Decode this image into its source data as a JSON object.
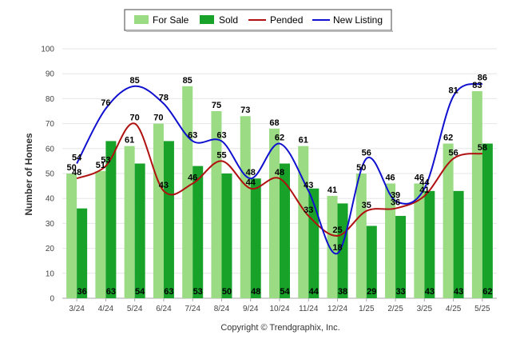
{
  "chart_data": {
    "type": "bar",
    "ylabel": "Number of Homes",
    "ylim": [
      0,
      100
    ],
    "yticks": [
      0,
      10,
      20,
      30,
      40,
      50,
      60,
      70,
      80,
      90,
      100
    ],
    "categories": [
      "3/24",
      "4/24",
      "5/24",
      "6/24",
      "7/24",
      "8/24",
      "9/24",
      "10/24",
      "11/24",
      "12/24",
      "1/25",
      "2/25",
      "3/25",
      "4/25",
      "5/25"
    ],
    "series": [
      {
        "name": "For Sale",
        "kind": "bar",
        "color": "#9ADB84",
        "values": [
          50,
          51,
          61,
          70,
          85,
          75,
          73,
          68,
          61,
          41,
          50,
          46,
          46,
          62,
          83
        ]
      },
      {
        "name": "Sold",
        "kind": "bar",
        "color": "#18A22A",
        "values": [
          36,
          63,
          54,
          63,
          53,
          50,
          48,
          54,
          44,
          38,
          29,
          33,
          43,
          43,
          62
        ]
      },
      {
        "name": "Pended",
        "kind": "line",
        "color": "#B01010",
        "values": [
          48,
          53,
          70,
          43,
          46,
          55,
          44,
          48,
          33,
          25,
          35,
          36,
          41,
          56,
          58
        ]
      },
      {
        "name": "New Listing",
        "kind": "line",
        "color": "#1010D0",
        "values": [
          54,
          76,
          85,
          78,
          63,
          63,
          48,
          62,
          43,
          18,
          56,
          39,
          44,
          81,
          86
        ]
      }
    ],
    "legend_position": "top-center",
    "grid": true,
    "footer": "Copyright © Trendgraphix, Inc."
  }
}
